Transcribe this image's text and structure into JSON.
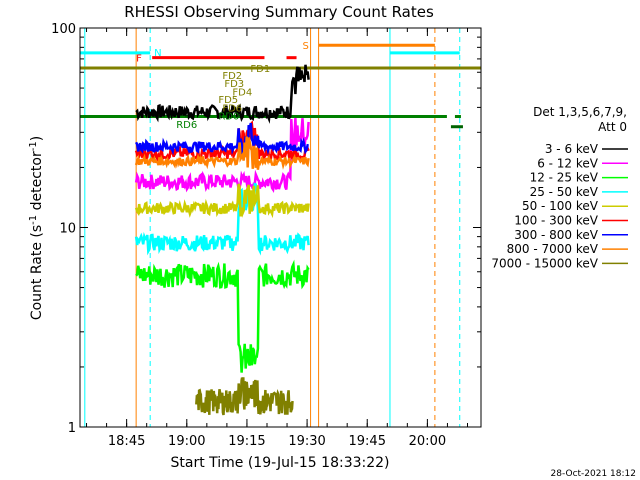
{
  "chart_data": {
    "type": "line",
    "title": "RHESSI Observing Summary Count Rates",
    "xlabel": "Start Time (19-Jul-15 18:33:22)",
    "ylabel": "Count Rate (s",
    "ylabel_sup": "-1",
    "ylabel_tail": " detector",
    "ylabel_end": ")",
    "y_scale": "log",
    "ylim": [
      1,
      100
    ],
    "xlim": [
      "18:33:22",
      "20:13:22"
    ],
    "xlim_min": [
      0,
      100
    ],
    "y_ticks": [
      {
        "value": 1,
        "label": "1"
      },
      {
        "value": 10,
        "label": "10"
      },
      {
        "value": 100,
        "label": "100"
      }
    ],
    "x_ticks": [
      {
        "min": 11.63,
        "label": "18:45"
      },
      {
        "min": 26.63,
        "label": "19:00"
      },
      {
        "min": 41.63,
        "label": "19:15"
      },
      {
        "min": 56.63,
        "label": "19:30"
      },
      {
        "min": 71.63,
        "label": "19:45"
      },
      {
        "min": 86.63,
        "label": "20:00"
      }
    ],
    "legend": {
      "header1": "Det 1,3,5,6,7,9,",
      "header2": "Att 0",
      "placement": "right"
    },
    "series": [
      {
        "name": "3 - 6 keV",
        "color": "#000000",
        "start": 14,
        "end": 57,
        "base": 38,
        "amp": 3,
        "spike_t": 55,
        "spike": 55
      },
      {
        "name": "6 - 12 keV",
        "color": "#ff00ff",
        "start": 14,
        "end": 57,
        "base": 17,
        "amp": 1.5,
        "spike_t": 55,
        "spike": 30
      },
      {
        "name": "12 - 25 keV",
        "color": "#00ff00",
        "start": 14,
        "end": 57,
        "base": 5.8,
        "amp": 0.8,
        "spike_t": 42,
        "spike": 2.2
      },
      {
        "name": "25 - 50 keV",
        "color": "#00ffff",
        "start": 14,
        "end": 57,
        "base": 8.4,
        "amp": 0.8,
        "spike_t": 42,
        "spike": 14
      },
      {
        "name": "50 - 100 keV",
        "color": "#cccc00",
        "start": 14,
        "end": 57,
        "base": 12.5,
        "amp": 0.8,
        "spike_t": 42,
        "spike": 14
      },
      {
        "name": "100 - 300 keV",
        "color": "#ff0000",
        "start": 14,
        "end": 57,
        "base": 23.5,
        "amp": 1.5,
        "spike_t": 42,
        "spike": 28
      },
      {
        "name": "300 - 800 keV",
        "color": "#0000ff",
        "start": 14,
        "end": 57,
        "base": 25.5,
        "amp": 1.5,
        "spike_t": 42,
        "spike": 28
      },
      {
        "name": "800 - 7000 keV",
        "color": "#ff8000",
        "start": 14,
        "end": 57,
        "base": 21.5,
        "amp": 1,
        "spike_t": 42,
        "spike": 24
      },
      {
        "name": "7000 - 15000 keV",
        "color": "#808000",
        "start": 29,
        "end": 53,
        "base": 1.35,
        "amp": 0.2,
        "spike_t": 42,
        "spike": 1.5
      }
    ],
    "horizontal_lines": [
      {
        "value": 63,
        "min_start": 0,
        "min_end": 100,
        "color": "#808000"
      },
      {
        "value": 36,
        "min_start": 0,
        "min_end": 91.5,
        "color": "#008000"
      },
      {
        "value": 36,
        "min_start": 93.5,
        "min_end": 95,
        "color": "#008000"
      }
    ],
    "vertical_lines": [
      {
        "min": 1.2,
        "color": "#00ffff",
        "dash": false
      },
      {
        "min": 14,
        "color": "#ff8000",
        "dash": false
      },
      {
        "min": 17.5,
        "color": "#00ffff",
        "dash": true
      },
      {
        "min": 57.5,
        "color": "#ff8000",
        "dash": false
      },
      {
        "min": 59.5,
        "color": "#ff8000",
        "dash": false
      },
      {
        "min": 77.3,
        "color": "#00ffff",
        "dash": false
      },
      {
        "min": 88.5,
        "color": "#ff8000",
        "dash": true
      },
      {
        "min": 94.7,
        "color": "#00ffff",
        "dash": true
      }
    ],
    "flag_bars": [
      {
        "label": "N",
        "color": "#00ffff",
        "y": 75,
        "segments": [
          [
            0,
            17.5
          ],
          [
            77.3,
            94.7
          ]
        ]
      },
      {
        "label": "F",
        "color": "#ff0000",
        "y": 71,
        "segments": [
          [
            18,
            46
          ],
          [
            51.5,
            54
          ]
        ]
      },
      {
        "label": "S",
        "color": "#ff8000",
        "y": 82,
        "segments": [
          [
            59.5,
            88.5
          ]
        ]
      },
      {
        "label": "",
        "color": "#006400",
        "y": 32,
        "segments": [
          [
            92.5,
            95.5
          ]
        ]
      }
    ],
    "annotations": [
      {
        "text": "FD1",
        "min": 42.5,
        "y": 63,
        "color": "#808000"
      },
      {
        "text": "FD2",
        "min": 35.5,
        "y": 58,
        "color": "#808000"
      },
      {
        "text": "FD3",
        "min": 36,
        "y": 53,
        "color": "#808000"
      },
      {
        "text": "FD4",
        "min": 38,
        "y": 48,
        "color": "#808000"
      },
      {
        "text": "FD5",
        "min": 34.5,
        "y": 44,
        "color": "#808000"
      },
      {
        "text": "FD6",
        "min": 35.5,
        "y": 40,
        "color": "#808000"
      },
      {
        "text": "RD0",
        "min": 34.5,
        "y": 36.5,
        "color": "#008000"
      },
      {
        "text": "RD6",
        "min": 24,
        "y": 33,
        "color": "#008000"
      },
      {
        "text": "N",
        "min": 18.5,
        "y": 76,
        "color": "#00ffff"
      },
      {
        "text": "F",
        "min": 14,
        "y": 71,
        "color": "#ff0000"
      },
      {
        "text": "S",
        "min": 55.5,
        "y": 82,
        "color": "#ff8000"
      }
    ]
  },
  "footer": {
    "timestamp": "28-Oct-2021 18:12"
  }
}
